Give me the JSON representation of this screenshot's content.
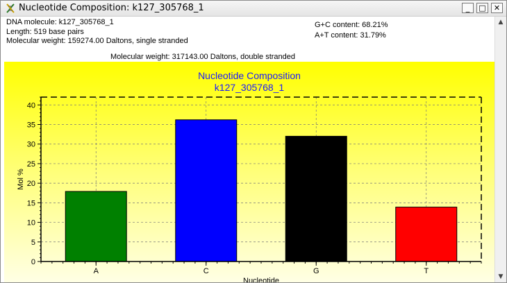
{
  "window": {
    "title": "Nucleotide Composition: k127_305768_1",
    "min_label": "_",
    "max_label": "□",
    "close_label": "✕"
  },
  "info": {
    "dna_molecule": "DNA molecule: k127_305768_1",
    "length": "Length: 519 base pairs",
    "mw_single": "Molecular weight: 159274.00 Daltons, single stranded",
    "gc_content": "G+C content: 68.21%",
    "at_content": "A+T content: 31.79%",
    "mw_double": "Molecular weight: 317143.00 Daltons, double stranded"
  },
  "scrollbar": {
    "up": "▲",
    "down": "▼"
  },
  "chart_data": {
    "type": "bar",
    "title": "Nucleotide Composition",
    "subtitle": "k127_305768_1",
    "xlabel": "Nucleotide",
    "ylabel": "Mol %",
    "ylim": [
      0,
      42
    ],
    "yticks": [
      0,
      5,
      10,
      15,
      20,
      25,
      30,
      35,
      40
    ],
    "categories": [
      "A",
      "C",
      "G",
      "T"
    ],
    "values": [
      17.9,
      36.2,
      32.0,
      13.9
    ],
    "colors": [
      "#008000",
      "#0000ff",
      "#000000",
      "#ff0000"
    ],
    "grid": true
  }
}
